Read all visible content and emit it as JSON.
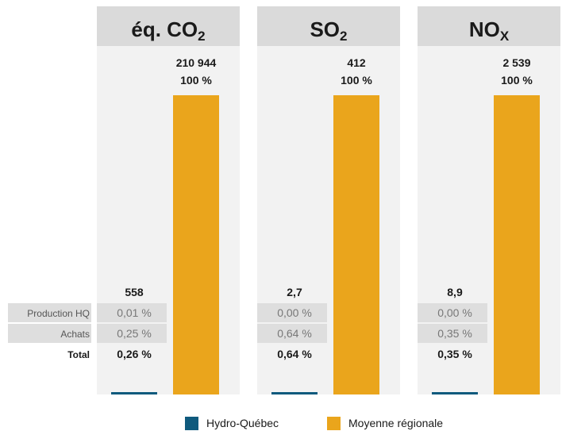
{
  "chart_data": {
    "type": "bar",
    "series_legend": [
      {
        "name": "Hydro-Québec",
        "color": "#0f5a7d"
      },
      {
        "name": "Moyenne régionale",
        "color": "#eaa51c"
      }
    ],
    "row_labels": [
      "Production HQ",
      "Achats",
      "Total"
    ],
    "panels": [
      {
        "title_main": "éq. CO",
        "title_sub": "2",
        "hq_value": 558,
        "hq_value_label": "558",
        "regional_value": 210944,
        "regional_value_label": "210 944",
        "regional_pct_label": "100 %",
        "production_pct": "0,01 %",
        "achats_pct": "0,25 %",
        "total_pct": "0,26 %"
      },
      {
        "title_main": "SO",
        "title_sub": "2",
        "hq_value": 2.7,
        "hq_value_label": "2,7",
        "regional_value": 412,
        "regional_value_label": "412",
        "regional_pct_label": "100 %",
        "production_pct": "0,00 %",
        "achats_pct": "0,64 %",
        "total_pct": "0,64 %"
      },
      {
        "title_main": "NO",
        "title_sub": "X",
        "hq_value": 8.9,
        "hq_value_label": "8,9",
        "regional_value": 2539,
        "regional_value_label": "2 539",
        "regional_pct_label": "100 %",
        "production_pct": "0,00 %",
        "achats_pct": "0,35 %",
        "total_pct": "0,35 %"
      }
    ]
  }
}
